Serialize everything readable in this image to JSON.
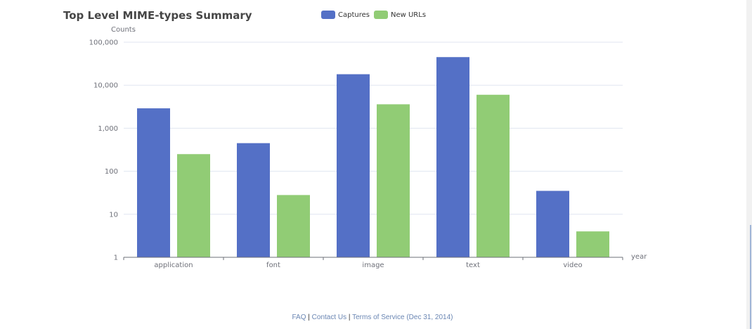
{
  "chart_data": {
    "type": "bar",
    "title": "Top Level MIME-types Summary",
    "ylabel": "Counts",
    "xlabel": "year",
    "yscale": "log",
    "ylim": [
      1,
      100000
    ],
    "yticks": [
      {
        "value": 1,
        "label": "1"
      },
      {
        "value": 10,
        "label": "10"
      },
      {
        "value": 100,
        "label": "100"
      },
      {
        "value": 1000,
        "label": "1,000"
      },
      {
        "value": 10000,
        "label": "10,000"
      },
      {
        "value": 100000,
        "label": "100,000"
      }
    ],
    "categories": [
      "application",
      "font",
      "image",
      "text",
      "video"
    ],
    "series": [
      {
        "name": "Captures",
        "color": "#5470c6",
        "values": [
          2900,
          450,
          18000,
          45000,
          35
        ]
      },
      {
        "name": "New URLs",
        "color": "#91cc75",
        "values": [
          250,
          28,
          3600,
          6000,
          4
        ]
      }
    ],
    "grid": true,
    "legend": "top-center"
  },
  "footer": {
    "faq": "FAQ",
    "sep1": " | ",
    "contact": "Contact Us",
    "sep2": " | ",
    "terms": "Terms of Service (Dec 31, 2014)"
  },
  "colors": {
    "axis": "#6e7079",
    "grid": "#e0e6f1",
    "link": "#6a86b3"
  }
}
